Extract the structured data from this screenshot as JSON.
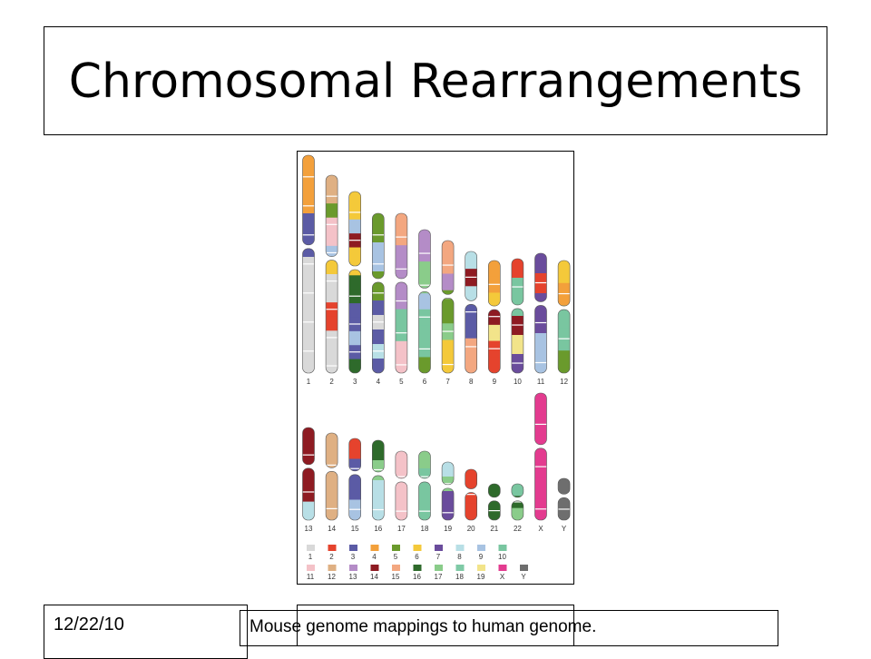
{
  "slide": {
    "title": "Chromosomal Rearrangements",
    "date": "12/22/10",
    "caption": "Mouse genome mappings to human genome."
  },
  "colors": {
    "1": "#d9d9d9",
    "2": "#e5432d",
    "3": "#5b5ba5",
    "4": "#f3a03b",
    "5": "#6a9a2c",
    "6": "#f4c93a",
    "7": "#6a4c9c",
    "8": "#b8dfe6",
    "9": "#a8c3e2",
    "10": "#79c6a0",
    "11": "#f4c2c8",
    "12": "#dfb083",
    "13": "#b48cc7",
    "14": "#8e1b22",
    "15": "#f3a780",
    "16": "#2e6a2b",
    "17": "#8acc8a",
    "18": "#7fcaa6",
    "19": "#f2e48a",
    "X": "#e33b8f",
    "Y": "#6e6e6e"
  },
  "legend": [
    "1",
    "2",
    "3",
    "4",
    "5",
    "6",
    "7",
    "8",
    "9",
    "10",
    "11",
    "12",
    "13",
    "14",
    "15",
    "16",
    "17",
    "18",
    "19",
    "X",
    "Y"
  ],
  "chromosomes_row1": [
    {
      "label": "1",
      "bands": [
        "4",
        "4",
        "4",
        "4",
        "3",
        "3",
        "3",
        "1",
        "1",
        "1",
        "1",
        "1",
        "1",
        "1",
        "1"
      ]
    },
    {
      "label": "2",
      "bands": [
        "12",
        "12",
        "5",
        "11",
        "11",
        "9",
        "6",
        "1",
        "1",
        "2",
        "2",
        "1",
        "1",
        "1"
      ]
    },
    {
      "label": "3",
      "bands": [
        "6",
        "6",
        "9",
        "14",
        "6",
        "6",
        "16",
        "16",
        "3",
        "3",
        "9",
        "3",
        "16"
      ]
    },
    {
      "label": "4",
      "bands": [
        "5",
        "5",
        "9",
        "9",
        "5",
        "5",
        "3",
        "1",
        "3",
        "8",
        "3"
      ]
    },
    {
      "label": "5",
      "bands": [
        "15",
        "15",
        "13",
        "13",
        "13",
        "13",
        "10",
        "10",
        "11",
        "11"
      ]
    },
    {
      "label": "6",
      "bands": [
        "13",
        "13",
        "17",
        "17",
        "9",
        "10",
        "10",
        "10",
        "5"
      ]
    },
    {
      "label": "7",
      "bands": [
        "15",
        "15",
        "13",
        "5",
        "5",
        "17",
        "6",
        "6"
      ]
    },
    {
      "label": "8",
      "bands": [
        "8",
        "14",
        "8",
        "3",
        "3",
        "15",
        "15"
      ]
    },
    {
      "label": "9",
      "bands": [
        "4",
        "4",
        "6",
        "14",
        "19",
        "2",
        "2"
      ]
    },
    {
      "label": "10",
      "bands": [
        "2",
        "10",
        "10",
        "14",
        "19",
        "7"
      ]
    },
    {
      "label": "11",
      "bands": [
        "7",
        "2",
        "7",
        "7",
        "9",
        "9"
      ]
    },
    {
      "label": "12",
      "bands": [
        "6",
        "4",
        "10",
        "10",
        "5"
      ]
    }
  ],
  "chromosomes_row2": [
    {
      "label": "13",
      "bands": [
        "14",
        "14",
        "14",
        "14",
        "8"
      ]
    },
    {
      "label": "14",
      "bands": [
        "12",
        "12",
        "12",
        "12"
      ]
    },
    {
      "label": "15",
      "bands": [
        "2",
        "3",
        "3",
        "9"
      ]
    },
    {
      "label": "16",
      "bands": [
        "16",
        "17",
        "8",
        "8"
      ]
    },
    {
      "label": "17",
      "bands": [
        "11",
        "11",
        "11",
        "11"
      ]
    },
    {
      "label": "18",
      "bands": [
        "17",
        "10",
        "10",
        "10"
      ]
    },
    {
      "label": "19",
      "bands": [
        "8",
        "17",
        "7",
        "7"
      ]
    },
    {
      "label": "20",
      "bands": [
        "2",
        "2",
        "2"
      ]
    },
    {
      "label": "21",
      "bands": [
        "16",
        "16"
      ]
    },
    {
      "label": "22",
      "bands": [
        "10",
        "16",
        "17"
      ]
    },
    {
      "label": "X",
      "bands": [
        "X",
        "X",
        "X",
        "X",
        "X",
        "X"
      ]
    },
    {
      "label": "Y",
      "bands": [
        "Y",
        "Y"
      ]
    }
  ]
}
